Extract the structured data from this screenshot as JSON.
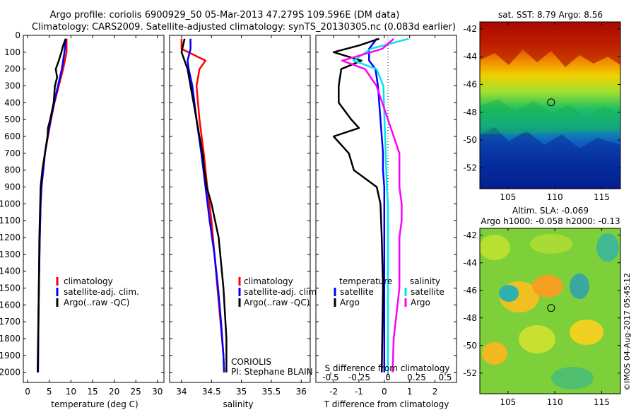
{
  "header": {
    "title_line1": "Argo profile: coriolis 6900929_50 05-Mar-2013 47.279S 109.596E (DM data)",
    "title_line2": "Climatology: CARS2009. Satellite-adjusted climatology: synTS_20130305.nc (0.083d earlier)"
  },
  "colors": {
    "climatology": "#ff0000",
    "satellite": "#0000ff",
    "argo": "#000000",
    "sal_satellite": "#00e5ee",
    "sal_argo": "#ff00ff"
  },
  "depth_axis": {
    "ticks": [
      0,
      100,
      200,
      300,
      400,
      500,
      600,
      700,
      800,
      900,
      1000,
      1100,
      1200,
      1300,
      1400,
      1500,
      1600,
      1700,
      1800,
      1900,
      2000
    ],
    "range": [
      0,
      2060
    ]
  },
  "chart_data": [
    {
      "type": "line",
      "xlabel": "temperature (deg C)",
      "xlim": [
        -1,
        31.5
      ],
      "xticks": [
        0,
        5,
        10,
        15,
        20,
        25,
        30
      ],
      "ylim": [
        0,
        2060
      ],
      "legend": [
        "climatology",
        "satellite-adj. clim.",
        "Argo(..raw -QC)"
      ],
      "series": [
        {
          "name": "climatology",
          "color": "#ff0000",
          "depth": [
            20,
            100,
            200,
            300,
            400,
            500,
            600,
            700,
            800,
            900,
            1000,
            1200,
            1500,
            1700,
            2000
          ],
          "values": [
            9.0,
            9.0,
            8.2,
            7.2,
            6.2,
            5.4,
            4.7,
            4.0,
            3.6,
            3.2,
            3.0,
            2.8,
            2.6,
            2.5,
            2.4
          ]
        },
        {
          "name": "satellite-adj. clim.",
          "color": "#0000ff",
          "depth": [
            20,
            100,
            200,
            300,
            400,
            500,
            600,
            700,
            800,
            900,
            1000,
            1200,
            1500,
            1700,
            2000
          ],
          "values": [
            8.8,
            8.5,
            7.9,
            7.0,
            6.1,
            5.3,
            4.6,
            4.0,
            3.6,
            3.2,
            3.0,
            2.8,
            2.6,
            2.5,
            2.4
          ]
        },
        {
          "name": "Argo(..raw -QC)",
          "color": "#000000",
          "depth": [
            20,
            60,
            100,
            150,
            200,
            250,
            300,
            400,
            500,
            550,
            600,
            700,
            800,
            900,
            1000,
            1200,
            1500,
            2000
          ],
          "values": [
            8.8,
            8.2,
            7.8,
            7.2,
            6.5,
            6.8,
            6.3,
            6.0,
            5.2,
            4.7,
            4.6,
            4.0,
            3.4,
            3.0,
            2.9,
            2.7,
            2.6,
            2.3
          ]
        }
      ]
    },
    {
      "type": "line",
      "xlabel": "salinity",
      "xlim": [
        33.8,
        36.15
      ],
      "xticks": [
        34,
        34.5,
        35,
        35.5,
        36
      ],
      "ylim": [
        0,
        2060
      ],
      "legend": [
        "climatology",
        "satellite-adj. clim.",
        "Argo(..raw -QC)"
      ],
      "annotation": [
        "CORIOLIS",
        "PI: Stephane BLAIN"
      ],
      "series": [
        {
          "name": "climatology",
          "color": "#ff0000",
          "depth": [
            20,
            80,
            150,
            200,
            300,
            500,
            700,
            900,
            1100,
            1300,
            1500,
            1700,
            1900,
            2000
          ],
          "values": [
            34.0,
            34.0,
            34.4,
            34.3,
            34.25,
            34.3,
            34.37,
            34.43,
            34.5,
            34.55,
            34.6,
            34.65,
            34.7,
            34.71
          ]
        },
        {
          "name": "satellite-adj. clim.",
          "color": "#0000ff",
          "depth": [
            20,
            80,
            150,
            200,
            300,
            500,
            700,
            900,
            1100,
            1300,
            1500,
            1700,
            1900,
            2000
          ],
          "values": [
            34.15,
            34.15,
            34.1,
            34.12,
            34.18,
            34.25,
            34.33,
            34.4,
            34.47,
            34.55,
            34.61,
            34.66,
            34.7,
            34.71
          ]
        },
        {
          "name": "Argo(..raw -QC)",
          "color": "#000000",
          "depth": [
            20,
            100,
            200,
            300,
            400,
            500,
            600,
            700,
            800,
            900,
            1000,
            1200,
            1500,
            1800,
            2000
          ],
          "values": [
            34.05,
            34.0,
            34.1,
            34.15,
            34.2,
            34.25,
            34.3,
            34.35,
            34.38,
            34.42,
            34.5,
            34.62,
            34.7,
            34.75,
            34.75
          ]
        }
      ]
    },
    {
      "type": "line",
      "xlabel": "T difference from climatology",
      "xlim": [
        -2.7,
        2.85
      ],
      "xticks": [
        -2,
        -1,
        0,
        1,
        2
      ],
      "top_xlabel": "S difference from climatology",
      "top_xticks": [
        {
          "value": -0.5,
          "label": "-0.5"
        },
        {
          "value": -0.25,
          "label": "-0.25"
        },
        {
          "value": 0,
          "label": "0"
        },
        {
          "value": 0.25,
          "label": "0.25"
        },
        {
          "value": 0.5,
          "label": "0.5"
        }
      ],
      "ylim": [
        0,
        2060
      ],
      "legend_left_title": "temperature",
      "legend_right_title": "salinity",
      "legend_left": [
        "satellite",
        "Argo"
      ],
      "legend_right": [
        "satellite",
        "Argo"
      ],
      "series": [
        {
          "name": "T satellite",
          "color": "#0000ff",
          "depth": [
            20,
            80,
            150,
            200,
            300,
            400,
            500,
            600,
            700,
            800,
            900,
            1000,
            1500,
            2000
          ],
          "values": [
            -0.3,
            -0.6,
            -0.6,
            -0.35,
            -0.25,
            -0.2,
            -0.15,
            -0.1,
            -0.05,
            -0.05,
            0,
            0,
            0,
            0
          ]
        },
        {
          "name": "T Argo",
          "color": "#000000",
          "depth": [
            20,
            60,
            100,
            150,
            200,
            300,
            400,
            500,
            550,
            600,
            700,
            800,
            900,
            1000,
            1200,
            1500,
            2000
          ],
          "values": [
            -0.2,
            -1.0,
            -2.0,
            -0.9,
            -1.7,
            -1.8,
            -1.8,
            -1.3,
            -1.0,
            -2.0,
            -1.4,
            -1.2,
            -0.3,
            -0.15,
            -0.1,
            -0.05,
            -0.1
          ]
        },
        {
          "name": "S satellite",
          "color": "#00e5ee",
          "depth": [
            20,
            80,
            150,
            200,
            300,
            500,
            700,
            900,
            1000,
            1500,
            2000
          ],
          "values": [
            0.18,
            -0.15,
            -0.3,
            -0.1,
            -0.04,
            -0.03,
            -0.02,
            -0.01,
            0,
            0,
            0
          ]
        },
        {
          "name": "S Argo",
          "color": "#ff00ff",
          "depth": [
            20,
            80,
            150,
            200,
            300,
            400,
            500,
            600,
            700,
            800,
            900,
            1000,
            1100,
            1200,
            1500,
            1800,
            2000
          ],
          "values": [
            0.05,
            -0.05,
            -0.4,
            -0.2,
            -0.1,
            -0.05,
            0,
            0.05,
            0.1,
            0.1,
            0.1,
            0.12,
            0.12,
            0.1,
            0.1,
            0.05,
            0.04
          ]
        }
      ]
    },
    {
      "type": "heatmap",
      "title": "sat. SST: 8.79 Argo: 8.56",
      "xlim": [
        102,
        117
      ],
      "ylim": [
        -53.5,
        -41.5
      ],
      "xticks": [
        105,
        110,
        115
      ],
      "yticks": [
        -42,
        -44,
        -46,
        -48,
        -50,
        -52
      ],
      "marker": {
        "lon": 109.596,
        "lat": -47.279
      }
    },
    {
      "type": "heatmap",
      "title_line1": "Altim. SLA: -0.069",
      "title_line2": "Argo h1000: -0.058 h2000: -0.13",
      "xlim": [
        102,
        117
      ],
      "ylim": [
        -53.5,
        -41.5
      ],
      "xticks": [
        105,
        110,
        115
      ],
      "yticks": [
        -42,
        -44,
        -46,
        -48,
        -50,
        -52
      ],
      "marker": {
        "lon": 109.596,
        "lat": -47.279
      }
    }
  ],
  "side_text": "©IMOS 04-Aug-2017 05:45:12"
}
